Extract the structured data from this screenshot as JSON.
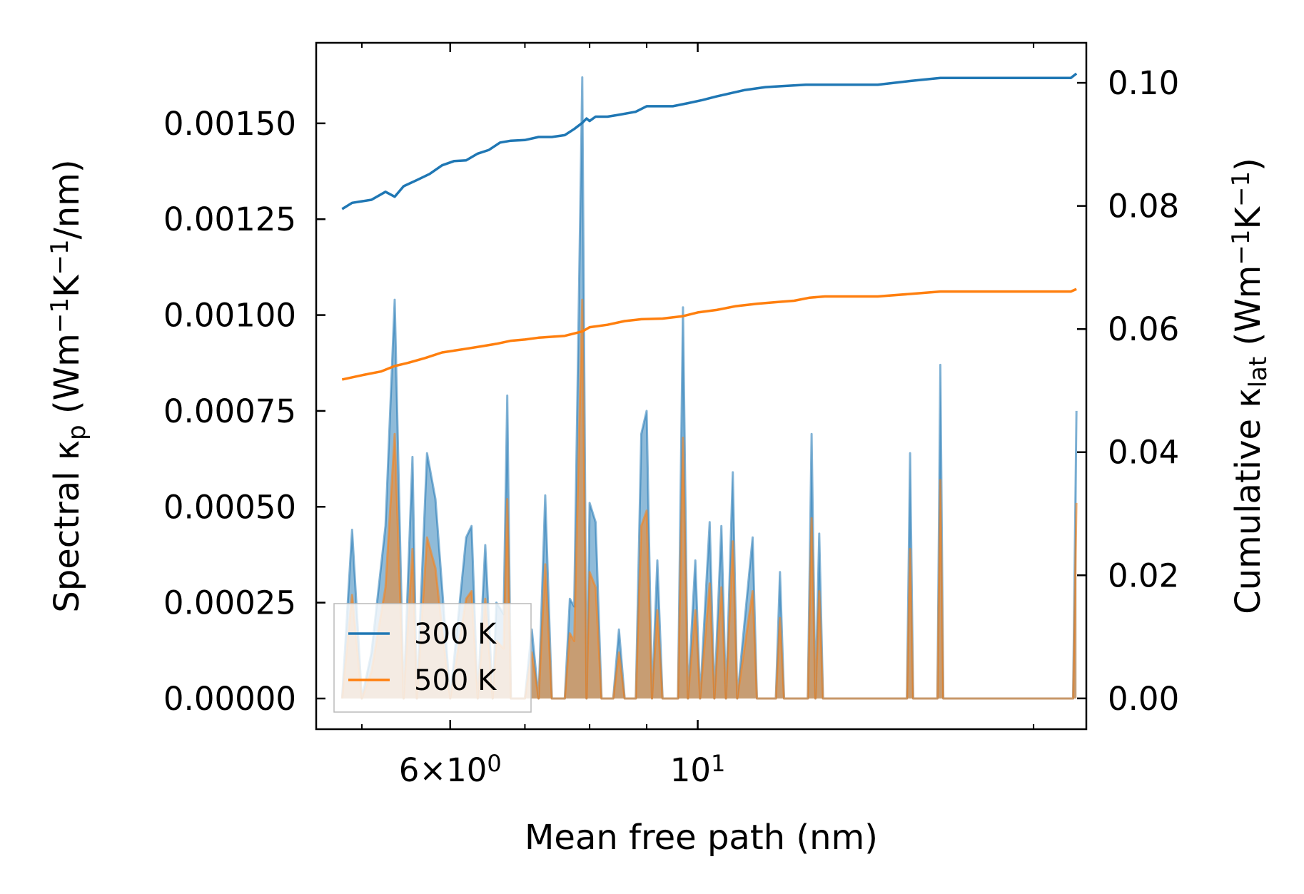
{
  "chart_data": {
    "type": "line",
    "x_scale": "log",
    "xlabel": "Mean free path (nm)",
    "ylabel_left": {
      "main": "Spectral κ",
      "sub": "p",
      "unit_open": " (Wm",
      "sup1": "−1",
      "k": "K",
      "sup2": "−1",
      "unit_close": "/nm)"
    },
    "ylabel_right": {
      "main": "Cumulative κ",
      "sub": "lat",
      "unit_open": " (Wm",
      "sup1": "−1",
      "k": "K",
      "sup2": "−1",
      "unit_close": ")"
    },
    "xlim": [
      4.55,
      22.3
    ],
    "ylim_left": [
      -8e-05,
      0.00171
    ],
    "ylim_right": [
      -0.005,
      0.1065
    ],
    "x_ticks": [
      {
        "value": 6,
        "mantissa": "6",
        "times": "×",
        "base": "10",
        "exp": "0"
      },
      {
        "value": 10,
        "mantissa": "",
        "times": "",
        "base": "10",
        "exp": "1"
      }
    ],
    "x_minor_ticks": [
      5,
      7,
      8,
      9,
      20
    ],
    "y_ticks_left": [
      {
        "value": 0,
        "label": "0.00000"
      },
      {
        "value": 0.00025,
        "label": "0.00025"
      },
      {
        "value": 0.0005,
        "label": "0.00050"
      },
      {
        "value": 0.00075,
        "label": "0.00075"
      },
      {
        "value": 0.001,
        "label": "0.00100"
      },
      {
        "value": 0.00125,
        "label": "0.00125"
      },
      {
        "value": 0.0015,
        "label": "0.00150"
      }
    ],
    "y_ticks_right": [
      {
        "value": 0,
        "label": "0.00"
      },
      {
        "value": 0.02,
        "label": "0.02"
      },
      {
        "value": 0.04,
        "label": "0.04"
      },
      {
        "value": 0.06,
        "label": "0.06"
      },
      {
        "value": 0.08,
        "label": "0.08"
      },
      {
        "value": 0.1,
        "label": "0.10"
      }
    ],
    "legend": {
      "position": "lower-left",
      "entries": [
        {
          "name": "300 K",
          "color": "#1f77b4"
        },
        {
          "name": "500 K",
          "color": "#ff7f0e"
        }
      ]
    },
    "series": [
      {
        "name": "300 K",
        "color": "#1f77b4",
        "spectral": [
          [
            4.8,
            0
          ],
          [
            4.9,
            0.00044
          ],
          [
            5.0,
            0
          ],
          [
            5.1,
            0.00012
          ],
          [
            5.25,
            0.00045
          ],
          [
            5.35,
            0.00104
          ],
          [
            5.45,
            0
          ],
          [
            5.55,
            0.00063
          ],
          [
            5.6,
            0
          ],
          [
            5.72,
            0.00064
          ],
          [
            5.82,
            0.00052
          ],
          [
            5.9,
            0.00029
          ],
          [
            6.0,
            0
          ],
          [
            6.2,
            0.00042
          ],
          [
            6.27,
            0.00045
          ],
          [
            6.35,
            0
          ],
          [
            6.45,
            0.0004
          ],
          [
            6.55,
            0
          ],
          [
            6.6,
            0.00025
          ],
          [
            6.7,
            0.00022
          ],
          [
            6.75,
            0.00079
          ],
          [
            6.8,
            0
          ],
          [
            7.0,
            0
          ],
          [
            7.1,
            0.00018
          ],
          [
            7.2,
            0
          ],
          [
            7.3,
            0.00053
          ],
          [
            7.4,
            0
          ],
          [
            7.6,
            0
          ],
          [
            7.68,
            0.00026
          ],
          [
            7.75,
            0.00024
          ],
          [
            7.88,
            0.00162
          ],
          [
            7.95,
            0
          ],
          [
            8.0,
            0.00051
          ],
          [
            8.1,
            0.00046
          ],
          [
            8.2,
            0
          ],
          [
            8.4,
            0
          ],
          [
            8.5,
            0.00018
          ],
          [
            8.6,
            0
          ],
          [
            8.8,
            0
          ],
          [
            8.9,
            0.00069
          ],
          [
            9.0,
            0.00075
          ],
          [
            9.1,
            0
          ],
          [
            9.2,
            0.00036
          ],
          [
            9.3,
            0
          ],
          [
            9.6,
            0
          ],
          [
            9.7,
            0.00102
          ],
          [
            9.8,
            0
          ],
          [
            9.95,
            0.00036
          ],
          [
            10.05,
            0
          ],
          [
            10.25,
            0.00046
          ],
          [
            10.35,
            0
          ],
          [
            10.5,
            0.00045
          ],
          [
            10.6,
            0
          ],
          [
            10.75,
            0.00059
          ],
          [
            10.85,
            0
          ],
          [
            11.2,
            0.00042
          ],
          [
            11.3,
            0
          ],
          [
            11.75,
            0
          ],
          [
            11.85,
            0.00033
          ],
          [
            11.95,
            0
          ],
          [
            12.55,
            0
          ],
          [
            12.65,
            0.00069
          ],
          [
            12.75,
            0
          ],
          [
            12.85,
            0.00043
          ],
          [
            12.95,
            0
          ],
          [
            15.4,
            0
          ],
          [
            15.5,
            0.00064
          ],
          [
            15.6,
            0
          ],
          [
            16.4,
            0
          ],
          [
            16.5,
            0.00087
          ],
          [
            16.6,
            0
          ],
          [
            21.7,
            0
          ],
          [
            21.85,
            0.00075
          ]
        ],
        "cumulative": [
          [
            4.8,
            0.0795
          ],
          [
            4.9,
            0.0805
          ],
          [
            5.1,
            0.081
          ],
          [
            5.25,
            0.0823
          ],
          [
            5.35,
            0.0815
          ],
          [
            5.45,
            0.0832
          ],
          [
            5.6,
            0.0842
          ],
          [
            5.75,
            0.0852
          ],
          [
            5.9,
            0.0866
          ],
          [
            6.05,
            0.0873
          ],
          [
            6.2,
            0.0874
          ],
          [
            6.35,
            0.0885
          ],
          [
            6.5,
            0.0891
          ],
          [
            6.65,
            0.0903
          ],
          [
            6.8,
            0.0906
          ],
          [
            7.0,
            0.0907
          ],
          [
            7.2,
            0.0912
          ],
          [
            7.4,
            0.0912
          ],
          [
            7.6,
            0.0915
          ],
          [
            7.75,
            0.0925
          ],
          [
            7.88,
            0.0935
          ],
          [
            7.95,
            0.0942
          ],
          [
            8.0,
            0.0938
          ],
          [
            8.1,
            0.0945
          ],
          [
            8.3,
            0.0945
          ],
          [
            8.5,
            0.0948
          ],
          [
            8.8,
            0.0953
          ],
          [
            9.0,
            0.0962
          ],
          [
            9.3,
            0.0962
          ],
          [
            9.5,
            0.0962
          ],
          [
            9.8,
            0.0967
          ],
          [
            10.1,
            0.0972
          ],
          [
            10.4,
            0.0978
          ],
          [
            10.7,
            0.0983
          ],
          [
            11.0,
            0.0988
          ],
          [
            11.5,
            0.0993
          ],
          [
            12.0,
            0.0995
          ],
          [
            12.5,
            0.0997
          ],
          [
            13.0,
            0.0997
          ],
          [
            14.5,
            0.0997
          ],
          [
            15.5,
            0.1003
          ],
          [
            16.5,
            0.1008
          ],
          [
            18.5,
            0.1008
          ],
          [
            21.6,
            0.1008
          ],
          [
            21.85,
            0.1015
          ]
        ]
      },
      {
        "name": "500 K",
        "color": "#ff7f0e",
        "spectral": [
          [
            4.8,
            0
          ],
          [
            4.9,
            0.00027
          ],
          [
            5.0,
            0
          ],
          [
            5.1,
            7e-05
          ],
          [
            5.25,
            0.00029
          ],
          [
            5.35,
            0.00069
          ],
          [
            5.45,
            0
          ],
          [
            5.55,
            0.00039
          ],
          [
            5.6,
            0
          ],
          [
            5.72,
            0.00042
          ],
          [
            5.82,
            0.00034
          ],
          [
            5.9,
            0.00018
          ],
          [
            6.0,
            0
          ],
          [
            6.2,
            0.00026
          ],
          [
            6.27,
            0.00028
          ],
          [
            6.35,
            0
          ],
          [
            6.45,
            0.00026
          ],
          [
            6.55,
            0
          ],
          [
            6.6,
            0.00015
          ],
          [
            6.7,
            0.00013
          ],
          [
            6.75,
            0.00052
          ],
          [
            6.8,
            0
          ],
          [
            7.0,
            0
          ],
          [
            7.1,
            0.00012
          ],
          [
            7.2,
            0
          ],
          [
            7.3,
            0.00035
          ],
          [
            7.4,
            0
          ],
          [
            7.6,
            0
          ],
          [
            7.68,
            0.00017
          ],
          [
            7.75,
            0.00015
          ],
          [
            7.88,
            0.00104
          ],
          [
            7.95,
            0
          ],
          [
            8.0,
            0.00033
          ],
          [
            8.1,
            0.00029
          ],
          [
            8.2,
            0
          ],
          [
            8.4,
            0
          ],
          [
            8.5,
            0.00012
          ],
          [
            8.6,
            0
          ],
          [
            8.8,
            0
          ],
          [
            8.9,
            0.00045
          ],
          [
            9.0,
            0.00049
          ],
          [
            9.1,
            0
          ],
          [
            9.2,
            0.00023
          ],
          [
            9.3,
            0
          ],
          [
            9.6,
            0
          ],
          [
            9.7,
            0.00068
          ],
          [
            9.8,
            0
          ],
          [
            9.95,
            0.00023
          ],
          [
            10.05,
            0
          ],
          [
            10.25,
            0.0003
          ],
          [
            10.35,
            0
          ],
          [
            10.5,
            0.00029
          ],
          [
            10.6,
            0
          ],
          [
            10.75,
            0.00041
          ],
          [
            10.85,
            0
          ],
          [
            11.2,
            0.00028
          ],
          [
            11.3,
            0
          ],
          [
            11.75,
            0
          ],
          [
            11.85,
            0.00021
          ],
          [
            11.95,
            0
          ],
          [
            12.55,
            0
          ],
          [
            12.65,
            0.00047
          ],
          [
            12.75,
            0
          ],
          [
            12.85,
            0.00028
          ],
          [
            12.95,
            0
          ],
          [
            15.4,
            0
          ],
          [
            15.5,
            0.00039
          ],
          [
            15.6,
            0
          ],
          [
            16.4,
            0
          ],
          [
            16.5,
            0.00057
          ],
          [
            16.6,
            0
          ],
          [
            21.7,
            0
          ],
          [
            21.85,
            0.00051
          ]
        ],
        "cumulative": [
          [
            4.8,
            0.0518
          ],
          [
            5.0,
            0.0525
          ],
          [
            5.2,
            0.0531
          ],
          [
            5.35,
            0.054
          ],
          [
            5.5,
            0.0545
          ],
          [
            5.7,
            0.0553
          ],
          [
            5.9,
            0.0562
          ],
          [
            6.05,
            0.0565
          ],
          [
            6.2,
            0.0568
          ],
          [
            6.4,
            0.0572
          ],
          [
            6.6,
            0.0576
          ],
          [
            6.8,
            0.0581
          ],
          [
            7.0,
            0.0583
          ],
          [
            7.2,
            0.0586
          ],
          [
            7.6,
            0.0589
          ],
          [
            7.88,
            0.0596
          ],
          [
            8.0,
            0.0603
          ],
          [
            8.3,
            0.0607
          ],
          [
            8.6,
            0.0613
          ],
          [
            8.9,
            0.0616
          ],
          [
            9.3,
            0.0617
          ],
          [
            9.7,
            0.0621
          ],
          [
            10.0,
            0.0627
          ],
          [
            10.4,
            0.0631
          ],
          [
            10.8,
            0.0637
          ],
          [
            11.3,
            0.0641
          ],
          [
            11.8,
            0.0644
          ],
          [
            12.2,
            0.0646
          ],
          [
            12.6,
            0.0651
          ],
          [
            13.0,
            0.0653
          ],
          [
            14.5,
            0.0653
          ],
          [
            15.5,
            0.0657
          ],
          [
            16.5,
            0.0661
          ],
          [
            18.5,
            0.0661
          ],
          [
            21.6,
            0.0661
          ],
          [
            21.85,
            0.0665
          ]
        ]
      }
    ]
  }
}
